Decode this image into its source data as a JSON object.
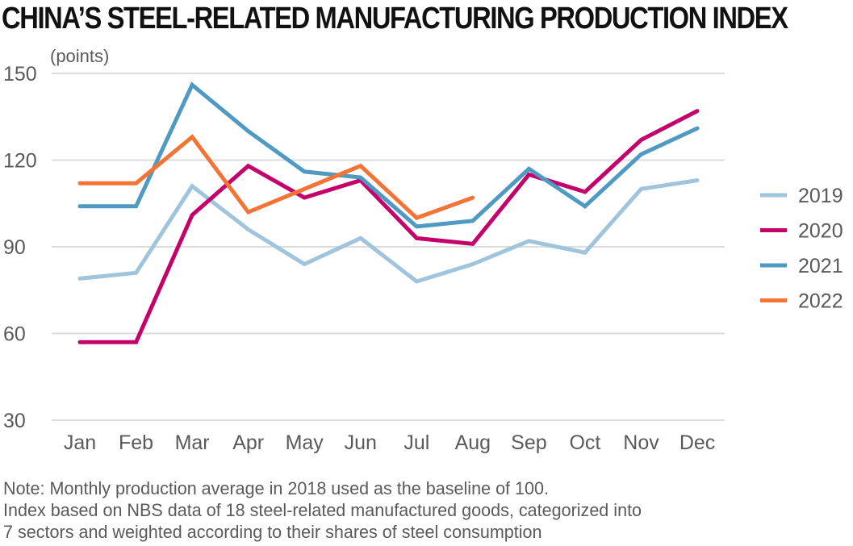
{
  "title": "CHINA’S STEEL-RELATED MANUFACTURING PRODUCTION INDEX",
  "note_lines": [
    "Note: Monthly production average in 2018 used as the baseline of 100.",
    "Index based on NBS data of 18 steel-related manufactured goods, categorized into",
    "7 sectors and weighted according to their shares of steel consumption"
  ],
  "chart_data": {
    "type": "line",
    "title": "CHINA’S STEEL-RELATED MANUFACTURING PRODUCTION INDEX",
    "xlabel": "",
    "ylabel": "(points)",
    "ylim": [
      30,
      150
    ],
    "yticks": [
      150,
      120,
      90,
      60,
      30
    ],
    "grid": true,
    "legend_position": "right",
    "categories": [
      "Jan",
      "Feb",
      "Mar",
      "Apr",
      "May",
      "Jun",
      "Jul",
      "Aug",
      "Sep",
      "Oct",
      "Nov",
      "Dec"
    ],
    "series": [
      {
        "name": "2019",
        "color": "#9fc4dc",
        "values": [
          79,
          81,
          111,
          96,
          84,
          93,
          78,
          84,
          92,
          88,
          110,
          113
        ]
      },
      {
        "name": "2020",
        "color": "#c4006b",
        "values": [
          57,
          57,
          101,
          118,
          107,
          113,
          93,
          91,
          115,
          109,
          127,
          137
        ]
      },
      {
        "name": "2021",
        "color": "#4e9ac3",
        "values": [
          104,
          104,
          146,
          130,
          116,
          114,
          97,
          99,
          117,
          104,
          122,
          131
        ]
      },
      {
        "name": "2022",
        "color": "#f47335",
        "values": [
          112,
          112,
          128,
          102,
          110,
          118,
          100,
          107
        ]
      }
    ]
  }
}
